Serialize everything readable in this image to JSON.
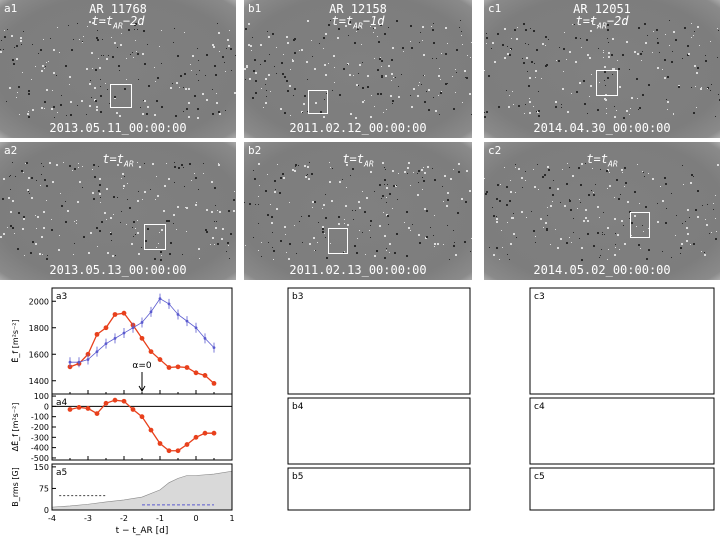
{
  "magnetograms": {
    "a1": {
      "label": "a1",
      "ar": "AR 11768",
      "time": "t=t",
      "time_sub": "AR",
      "time_suffix": "−2d",
      "date": "2013.05.11_00:00:00"
    },
    "b1": {
      "label": "b1",
      "ar": "AR 12158",
      "time": "t=t",
      "time_sub": "AR",
      "time_suffix": "−1d",
      "date": "2011.02.12_00:00:00"
    },
    "c1": {
      "label": "c1",
      "ar": "AR 12051",
      "time": "t=t",
      "time_sub": "AR",
      "time_suffix": "−2d",
      "date": "2014.04.30_00:00:00"
    },
    "a2": {
      "label": "a2",
      "time": "t=t",
      "time_sub": "AR",
      "date": "2013.05.13_00:00:00"
    },
    "b2": {
      "label": "b2",
      "time": "t=t",
      "time_sub": "AR",
      "date": "2011.02.13_00:00:00"
    },
    "c2": {
      "label": "c2",
      "time": "t=t",
      "time_sub": "AR",
      "date": "2014.05.02_00:00:00"
    }
  },
  "colors": {
    "red": "#e8401c",
    "blue": "#5a5acf",
    "fill": "#d9d9d9",
    "black": "#000000"
  },
  "chart_data": [
    {
      "panel": "a3",
      "type": "line",
      "ylabel": "Ē_f [m²s⁻²]",
      "xlim": [
        -4,
        1
      ],
      "ylim": [
        1300,
        2100
      ],
      "yticks": [
        1400,
        1600,
        1800,
        2000
      ],
      "annotation": "α=0",
      "arrow_x": -1.5,
      "series": [
        {
          "color": "red",
          "x": [
            -3.5,
            -3.25,
            -3.0,
            -2.75,
            -2.5,
            -2.25,
            -2.0,
            -1.75,
            -1.5,
            -1.25,
            -1.0,
            -0.75,
            -0.5,
            -0.25,
            0.0,
            0.25,
            0.5
          ],
          "y": [
            1505,
            1530,
            1600,
            1750,
            1800,
            1900,
            1910,
            1820,
            1720,
            1620,
            1560,
            1500,
            1505,
            1500,
            1460,
            1440,
            1380
          ]
        },
        {
          "color": "blue",
          "x": [
            -3.5,
            -3.25,
            -3.0,
            -2.75,
            -2.5,
            -2.25,
            -2.0,
            -1.75,
            -1.5,
            -1.25,
            -1.0,
            -0.75,
            -0.5,
            -0.25,
            0.0,
            0.25,
            0.5
          ],
          "y": [
            1540,
            1540,
            1560,
            1620,
            1680,
            1720,
            1760,
            1800,
            1840,
            1920,
            2020,
            1980,
            1900,
            1850,
            1800,
            1720,
            1650
          ]
        }
      ]
    },
    {
      "panel": "a4",
      "type": "line",
      "ylabel": "ΔĒ_f [m²s⁻²]",
      "xlim": [
        -4,
        1
      ],
      "ylim": [
        -520,
        120
      ],
      "yticks": [
        100,
        0,
        -100,
        -200,
        -300,
        -400,
        -500
      ],
      "series": [
        {
          "color": "red",
          "x": [
            -3.5,
            -3.25,
            -3.0,
            -2.75,
            -2.5,
            -2.25,
            -2.0,
            -1.75,
            -1.5,
            -1.25,
            -1.0,
            -0.75,
            -0.5,
            -0.25,
            0.0,
            0.25,
            0.5
          ],
          "y": [
            -30,
            -10,
            -20,
            -70,
            30,
            60,
            50,
            -30,
            -100,
            -230,
            -360,
            -430,
            -430,
            -370,
            -300,
            -260,
            -260
          ]
        }
      ]
    },
    {
      "panel": "a5",
      "type": "area",
      "ylabel": "B_rms [G]",
      "xlim": [
        -4,
        1
      ],
      "ylim": [
        0,
        160
      ],
      "yticks": [
        150,
        75,
        0
      ],
      "xticks": [
        -4,
        -3,
        -2,
        -1,
        0,
        1
      ],
      "xlabel": "t − t_AR [d]",
      "fill": {
        "x": [
          -4,
          -3.5,
          -3,
          -2.5,
          -2,
          -1.5,
          -1,
          -0.75,
          -0.5,
          -0.25,
          0,
          0.5,
          1
        ],
        "y": [
          10,
          14,
          20,
          28,
          35,
          45,
          70,
          95,
          110,
          120,
          120,
          125,
          135
        ]
      }
    }
  ]
}
